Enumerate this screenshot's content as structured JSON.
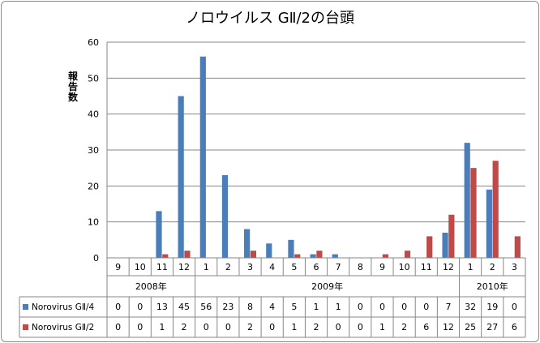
{
  "chart_data": {
    "type": "bar",
    "title": "ノロウイルス GⅡ/2の台頭",
    "ylabel": "報告数",
    "xlabel": "",
    "ylim": [
      0,
      60
    ],
    "yticks": [
      "0",
      "10",
      "20",
      "30",
      "40",
      "50",
      "60"
    ],
    "grid": true,
    "legend": "table-left",
    "categories": [
      "9",
      "10",
      "11",
      "12",
      "1",
      "2",
      "3",
      "4",
      "5",
      "6",
      "7",
      "8",
      "9",
      "10",
      "11",
      "12",
      "1",
      "2",
      "3"
    ],
    "years": [
      {
        "label": "2008年",
        "span": 4
      },
      {
        "label": "2009年",
        "span": 12
      },
      {
        "label": "2010年",
        "span": 3
      }
    ],
    "series": [
      {
        "name": "Norovirus GⅡ/4",
        "color": "#4a7ebb",
        "values": [
          0,
          0,
          13,
          45,
          56,
          23,
          8,
          4,
          5,
          1,
          1,
          0,
          0,
          0,
          0,
          7,
          32,
          19,
          0
        ]
      },
      {
        "name": "Norovirus GⅡ/2",
        "color": "#be4b48",
        "values": [
          0,
          0,
          1,
          2,
          0,
          0,
          2,
          0,
          1,
          2,
          0,
          0,
          1,
          2,
          6,
          12,
          25,
          27,
          6
        ]
      }
    ]
  }
}
